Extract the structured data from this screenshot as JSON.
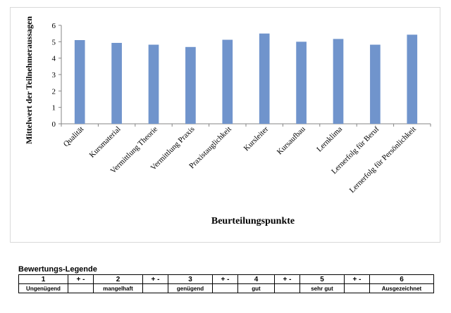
{
  "chart_data": {
    "type": "bar",
    "categories": [
      "Qualität",
      "Kursmaterial",
      "Vermittlung Theorie",
      "Vermittlung Praxis",
      "Praxistauglichkeit",
      "Kursleiter",
      "Kursaufbau",
      "Lernklima",
      "Lernerfolg für Beruf",
      "Lernerfolg für Persönlichkeit"
    ],
    "values": [
      5.1,
      4.93,
      4.82,
      4.68,
      5.12,
      5.5,
      5.0,
      5.17,
      4.82,
      5.43
    ],
    "xlabel": "Beurteilungspunkte",
    "ylabel": "Mittelwert der Teilnehmeraussagen",
    "ylim": [
      0,
      6
    ],
    "yticks": [
      "0",
      "1",
      "2",
      "3",
      "4",
      "5",
      "6"
    ],
    "grid": false,
    "legend": "none",
    "bar_color": "#7094cc"
  },
  "legend": {
    "title": "Bewertungs-Legende",
    "numbers": [
      "1",
      "+ -",
      "2",
      "+ -",
      "3",
      "+ -",
      "4",
      "+ -",
      "5",
      "+ -",
      "6"
    ],
    "labels": [
      "Ungenügend",
      "",
      "mangelhaft",
      "",
      "genügend",
      "",
      "gut",
      "",
      "sehr gut",
      "",
      "Ausgezeichnet"
    ]
  }
}
